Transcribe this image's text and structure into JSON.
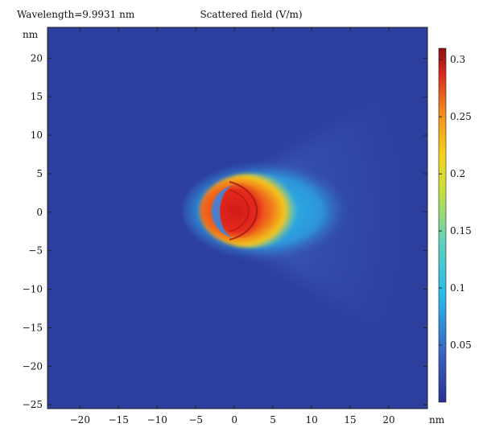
{
  "header": {
    "wavelength_label": "Wavelength=9.9931 nm",
    "title": "Scattered field (V/m)"
  },
  "chart_data": {
    "type": "heatmap",
    "title": "Scattered field (V/m)",
    "annotation": "Wavelength=9.9931 nm",
    "xunit": "nm",
    "yunit": "nm",
    "xlim": [
      -24.2,
      25.0
    ],
    "ylim": [
      -25.5,
      24.0
    ],
    "xticks": [
      -20,
      -15,
      -10,
      -5,
      0,
      5,
      10,
      15,
      20
    ],
    "yticks": [
      -25,
      -20,
      -15,
      -10,
      -5,
      0,
      5,
      10,
      15,
      20
    ],
    "colorbar": {
      "range": [
        0.0,
        0.31
      ],
      "ticks": [
        0.05,
        0.1,
        0.15,
        0.2,
        0.25,
        0.3
      ],
      "colormap": "rainbow",
      "colors": [
        "#2a2f8f",
        "#3a63c4",
        "#27b8e8",
        "#5fd0c0",
        "#c8e03a",
        "#f7d21c",
        "#f28a1e",
        "#d8261e",
        "#8b0e12"
      ]
    },
    "features": {
      "background_level": 0.03,
      "peak_level": 0.31,
      "peak_center": [
        1.5,
        0.0
      ],
      "hot_region_radius": 5.0,
      "glow_extent_x": [
        -4,
        15
      ],
      "glow_extent_y": [
        -5.5,
        5.5
      ]
    }
  }
}
